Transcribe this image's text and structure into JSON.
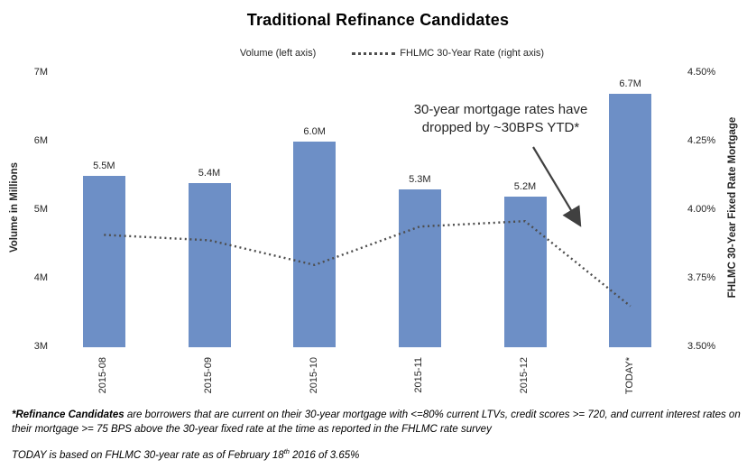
{
  "title": "Traditional Refinance Candidates",
  "legend": {
    "volume_label": "Volume (left axis)",
    "rate_label": "FHLMC 30-Year Rate (right axis)"
  },
  "annotation": {
    "line1": "30-year mortgage rates have",
    "line2": "dropped by ~30BPS YTD*"
  },
  "colors": {
    "bar": "#6d8fc6",
    "line": "#4d4d4d",
    "arrow": "#404040"
  },
  "chart_data": {
    "type": "combo-bar-line",
    "categories": [
      "2015-08",
      "2015-09",
      "2015-10",
      "2015-11",
      "2015-12",
      "TODAY*"
    ],
    "series": [
      {
        "name": "Volume (left axis)",
        "type": "bar",
        "axis": "left",
        "values": [
          5.5,
          5.4,
          6.0,
          5.3,
          5.2,
          6.7
        ],
        "labels": [
          "5.5M",
          "5.4M",
          "6.0M",
          "5.3M",
          "5.2M",
          "6.7M"
        ]
      },
      {
        "name": "FHLMC 30-Year Rate (right axis)",
        "type": "line",
        "axis": "right",
        "line_style": "dotted",
        "values": [
          3.91,
          3.89,
          3.8,
          3.94,
          3.96,
          3.65
        ]
      }
    ],
    "left_axis": {
      "title": "Volume in Millions",
      "min": 3,
      "max": 7,
      "ticks": [
        {
          "v": 7,
          "label": "7M"
        },
        {
          "v": 6,
          "label": "6M"
        },
        {
          "v": 5,
          "label": "5M"
        },
        {
          "v": 4,
          "label": "4M"
        },
        {
          "v": 3,
          "label": "3M"
        }
      ]
    },
    "right_axis": {
      "title": "FHLMC 30-Year Fixed Rate Mortgage",
      "min": 3.5,
      "max": 4.5,
      "ticks": [
        {
          "v": 4.5,
          "label": "4.50%"
        },
        {
          "v": 4.25,
          "label": "4.25%"
        },
        {
          "v": 4.0,
          "label": "4.00%"
        },
        {
          "v": 3.75,
          "label": "3.75%"
        },
        {
          "v": 3.5,
          "label": "3.50%"
        }
      ]
    },
    "grid": false,
    "legend_position": "top"
  },
  "footnotes": {
    "note1_bold": "*Refinance Candidates",
    "note1_rest": " are borrowers that are current on their 30-year  mortgage with <=80% current LTVs, credit scores >= 720, and current interest rates on their mortgage >= 75 BPS above the 30-year fixed rate at the time as reported in the FHLMC rate survey",
    "note2_pre": "TODAY is based on FHLMC 30-year rate as of February 18",
    "note2_sup": "th",
    "note2_post": " 2016 of 3.65%"
  }
}
